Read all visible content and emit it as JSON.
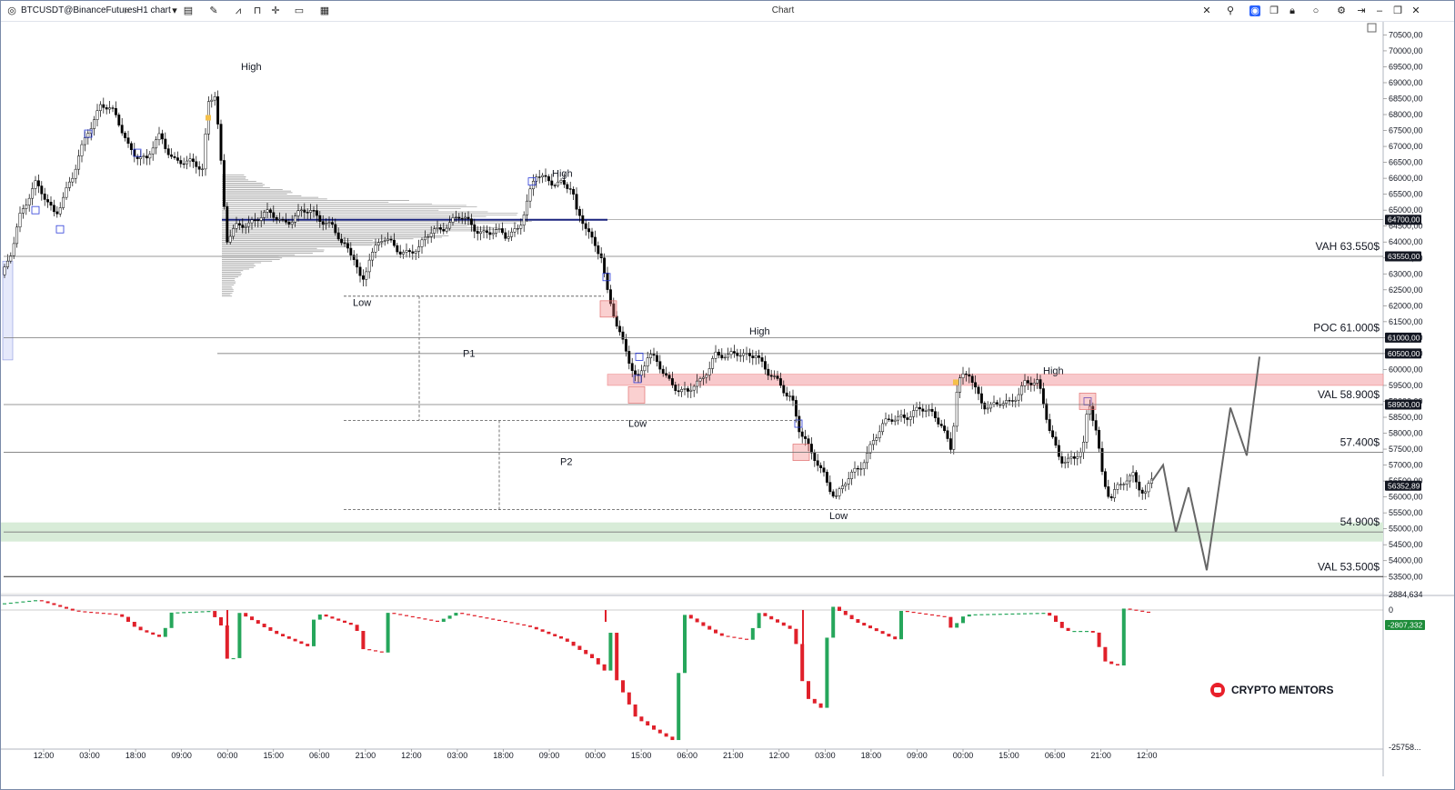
{
  "window": {
    "title": "Chart"
  },
  "toolbar": {
    "symbol": "BTCUSDT@BinanceFutures",
    "interval": "H1 chart",
    "icons": [
      "logo-icon",
      "search-icon",
      "chevron-down-icon",
      "bar-style-icon",
      "draw-icon",
      "indicators-icon",
      "template-icon",
      "crosshair-icon",
      "layout-icon",
      "chart-type-icon",
      "cursor-icon",
      "link-icon",
      "camera-icon",
      "copy-icon",
      "lock-icon",
      "circle-icon",
      "settings-icon",
      "minimize-icon",
      "maximize-icon",
      "close-icon"
    ]
  },
  "colors": {
    "accent": "#2962ff",
    "poc_line": "#1a237e",
    "zone_red": "#f8c9cc",
    "zone_green": "#d8ecd8",
    "level_line": "#555555",
    "up_candle": "#ffffff",
    "down_candle": "#000000",
    "osc_up": "#26a65b",
    "osc_down": "#e0202a",
    "projection": "#666666"
  },
  "chart_data": {
    "type": "candlestick",
    "symbol": "BTCUSDT",
    "timeframe": "H1",
    "ylim": [
      53100,
      70700
    ],
    "y_ticks": [
      "70500,00",
      "70000,00",
      "69500,00",
      "69000,00",
      "68500,00",
      "68000,00",
      "67500,00",
      "67000,00",
      "66500,00",
      "66000,00",
      "65500,00",
      "65000,00",
      "64500,00",
      "64000,00",
      "63500,00",
      "63000,00",
      "62500,00",
      "62000,00",
      "61500,00",
      "61000,00",
      "60500,00",
      "60000,00",
      "59500,00",
      "59000,00",
      "58500,00",
      "58000,00",
      "57500,00",
      "57000,00",
      "56500,00",
      "56000,00",
      "55500,00",
      "55000,00",
      "54500,00",
      "54000,00",
      "53500,00"
    ],
    "y_tick_values": [
      70500,
      70000,
      69500,
      69000,
      68500,
      68000,
      67500,
      67000,
      66500,
      66000,
      65500,
      65000,
      64500,
      64000,
      63500,
      63000,
      62500,
      62000,
      61500,
      61000,
      60500,
      60000,
      59500,
      59000,
      58500,
      58000,
      57500,
      57000,
      56500,
      56000,
      55500,
      55000,
      54500,
      54000,
      53500
    ],
    "x_ticks": [
      "12:00",
      "03:00",
      "18:00",
      "09:00",
      "00:00",
      "15:00",
      "06:00",
      "21:00",
      "12:00",
      "03:00",
      "18:00",
      "09:00",
      "00:00",
      "15:00",
      "06:00",
      "21:00",
      "12:00",
      "03:00",
      "18:00",
      "09:00",
      "00:00",
      "15:00",
      "06:00",
      "21:00",
      "12:00"
    ],
    "price_path": [
      [
        0,
        62700
      ],
      [
        10,
        63600
      ],
      [
        20,
        64900
      ],
      [
        38,
        65700
      ],
      [
        60,
        65000
      ],
      [
        80,
        66000
      ],
      [
        95,
        67500
      ],
      [
        110,
        68400
      ],
      [
        125,
        67900
      ],
      [
        140,
        67100
      ],
      [
        160,
        66500
      ],
      [
        175,
        67300
      ],
      [
        190,
        66700
      ],
      [
        205,
        66400
      ],
      [
        222,
        66300
      ],
      [
        228,
        68500
      ],
      [
        235,
        68800
      ],
      [
        240,
        67300
      ],
      [
        248,
        63900
      ],
      [
        258,
        64400
      ],
      [
        270,
        64700
      ],
      [
        290,
        64800
      ],
      [
        310,
        64700
      ],
      [
        330,
        64900
      ],
      [
        350,
        64800
      ],
      [
        365,
        64600
      ],
      [
        375,
        63800
      ],
      [
        388,
        63500
      ],
      [
        397,
        62800
      ],
      [
        405,
        63600
      ],
      [
        420,
        64000
      ],
      [
        440,
        63800
      ],
      [
        460,
        63700
      ],
      [
        475,
        64400
      ],
      [
        490,
        64600
      ],
      [
        505,
        64700
      ],
      [
        520,
        64500
      ],
      [
        540,
        64300
      ],
      [
        555,
        64100
      ],
      [
        570,
        64600
      ],
      [
        580,
        65400
      ],
      [
        588,
        66000
      ],
      [
        600,
        65900
      ],
      [
        615,
        66000
      ],
      [
        628,
        65600
      ],
      [
        633,
        64800
      ],
      [
        645,
        64400
      ],
      [
        660,
        63700
      ],
      [
        668,
        62200
      ],
      [
        678,
        61200
      ],
      [
        690,
        60400
      ],
      [
        700,
        59800
      ],
      [
        712,
        60400
      ],
      [
        725,
        60000
      ],
      [
        740,
        59600
      ],
      [
        755,
        59200
      ],
      [
        770,
        59600
      ],
      [
        785,
        60600
      ],
      [
        800,
        60300
      ],
      [
        815,
        60500
      ],
      [
        830,
        60600
      ],
      [
        842,
        59800
      ],
      [
        858,
        59500
      ],
      [
        870,
        59200
      ],
      [
        878,
        58100
      ],
      [
        890,
        57300
      ],
      [
        905,
        56800
      ],
      [
        918,
        56000
      ],
      [
        930,
        56400
      ],
      [
        945,
        57000
      ],
      [
        958,
        57800
      ],
      [
        972,
        58200
      ],
      [
        990,
        58600
      ],
      [
        1005,
        58700
      ],
      [
        1020,
        58600
      ],
      [
        1035,
        58400
      ],
      [
        1045,
        57500
      ],
      [
        1052,
        59500
      ],
      [
        1065,
        59800
      ],
      [
        1080,
        59000
      ],
      [
        1095,
        58800
      ],
      [
        1110,
        58900
      ],
      [
        1125,
        59700
      ],
      [
        1140,
        59500
      ],
      [
        1152,
        58200
      ],
      [
        1165,
        57300
      ],
      [
        1180,
        57100
      ],
      [
        1190,
        57400
      ],
      [
        1196,
        59000
      ],
      [
        1205,
        58200
      ],
      [
        1212,
        56600
      ],
      [
        1220,
        55900
      ],
      [
        1232,
        56300
      ],
      [
        1245,
        56800
      ],
      [
        1258,
        56100
      ],
      [
        1266,
        56500
      ]
    ],
    "levels": [
      {
        "label": "VAH 63.550$",
        "price": 63550
      },
      {
        "label": "POC 61.000$",
        "price": 61000
      },
      {
        "label": "VAL 58.900$",
        "price": 58900
      },
      {
        "label": "57.400$",
        "price": 57400
      },
      {
        "label": "54.900$",
        "price": 54900
      },
      {
        "label": "VAL 53.500$",
        "price": 53500
      }
    ],
    "price_tags": [
      {
        "text": "64700,00",
        "price": 64700
      },
      {
        "text": "63550,00",
        "price": 63550
      },
      {
        "text": "61000,00",
        "price": 61000
      },
      {
        "text": "60500,00",
        "price": 60500
      },
      {
        "text": "58900,00",
        "price": 58900
      },
      {
        "text": "56352,89",
        "price": 56352.89
      }
    ],
    "other_lines": [
      {
        "price": 64700,
        "style": "poc"
      },
      {
        "price": 60500,
        "style": "thin"
      }
    ],
    "zones": [
      {
        "color": "red",
        "from": 59500,
        "to": 59850
      },
      {
        "color": "green",
        "from": 54600,
        "to": 55200
      }
    ],
    "annotations": [
      {
        "text": "High",
        "price": 69400
      },
      {
        "text": "Low",
        "price": 62000
      },
      {
        "text": "High",
        "price": 66050
      },
      {
        "text": "P1",
        "price": 60400
      },
      {
        "text": "Low",
        "price": 58200
      },
      {
        "text": "P2",
        "price": 57000
      },
      {
        "text": "High",
        "price": 61100
      },
      {
        "text": "Low",
        "price": 55300
      },
      {
        "text": "High",
        "price": 59850
      }
    ],
    "measure_lines": [
      {
        "price": 62300,
        "x_from": 377,
        "x_to": 663
      },
      {
        "price": 58400,
        "x_from": 377,
        "x_to": 880
      },
      {
        "price": 55600,
        "x_from": 377,
        "x_to": 1262
      }
    ],
    "projection_path": [
      [
        1266,
        56500
      ],
      [
        1278,
        57000
      ],
      [
        1292,
        54900
      ],
      [
        1306,
        56300
      ],
      [
        1326,
        53700
      ],
      [
        1352,
        58800
      ],
      [
        1370,
        57300
      ],
      [
        1384,
        60400
      ]
    ],
    "volume_profile": {
      "price_from": 62300,
      "price_to": 66100,
      "poc": 64700
    },
    "oscillator": {
      "ticks": [
        "2884,634",
        "0"
      ],
      "tag": "-2807,332",
      "bottom_tick": "-25758..."
    }
  },
  "brand": {
    "name": "CRYPTO MENTORS"
  }
}
